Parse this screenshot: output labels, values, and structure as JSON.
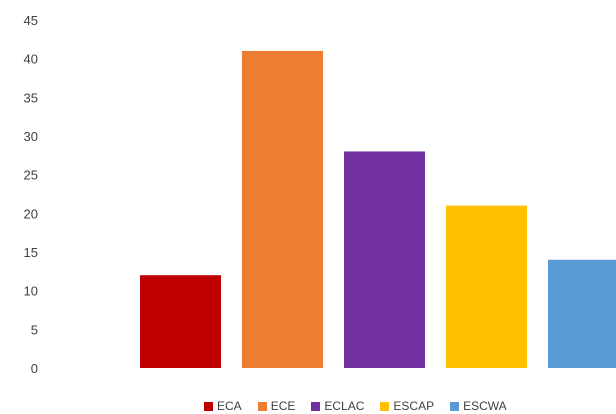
{
  "chart_data": {
    "type": "bar",
    "categories": [
      "ECA",
      "ECE",
      "ECLAC",
      "ESCAP",
      "ESCWA"
    ],
    "values": [
      12,
      41,
      28,
      21,
      14
    ],
    "colors": [
      "#C00000",
      "#ED7D31",
      "#7030A0",
      "#FFC000",
      "#5B9BD5"
    ],
    "title": "",
    "xlabel": "",
    "ylabel": "",
    "ylim": [
      0,
      45
    ],
    "yticks": [
      "0",
      "5",
      "10",
      "15",
      "20",
      "25",
      "30",
      "35",
      "40",
      "45"
    ],
    "grid": false,
    "legend_position": "bottom"
  }
}
